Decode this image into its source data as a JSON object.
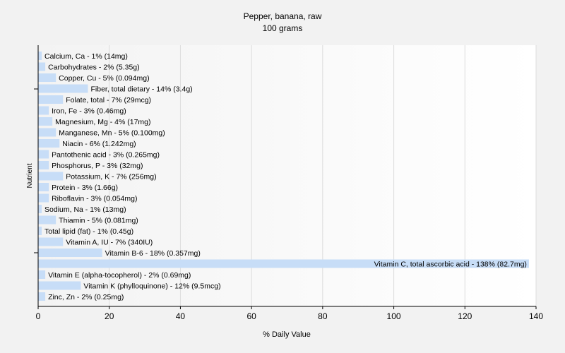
{
  "chart_data": {
    "type": "bar",
    "orientation": "horizontal",
    "title": "Pepper, banana, raw",
    "subtitle": "100 grams",
    "xlabel": "% Daily Value",
    "ylabel": "Nutrient",
    "xlim": [
      0,
      140
    ],
    "xticks": [
      0,
      20,
      40,
      60,
      80,
      100,
      120,
      140
    ],
    "grid": true,
    "colors": {
      "bar": "#c7ddf7",
      "grid": "#dcdcdc",
      "plot_bg": "#ffffff",
      "page_bg": "#f2f2f2",
      "axis": "#000000"
    },
    "bars": [
      {
        "category": "Calcium, Ca",
        "value": 1,
        "label": "Calcium, Ca - 1% (14mg)"
      },
      {
        "category": "Carbohydrates",
        "value": 2,
        "label": "Carbohydrates - 2% (5.35g)"
      },
      {
        "category": "Copper, Cu",
        "value": 5,
        "label": "Copper, Cu - 5% (0.094mg)"
      },
      {
        "category": "Fiber, total dietary",
        "value": 14,
        "label": "Fiber, total dietary - 14% (3.4g)"
      },
      {
        "category": "Folate, total",
        "value": 7,
        "label": "Folate, total - 7% (29mcg)"
      },
      {
        "category": "Iron, Fe",
        "value": 3,
        "label": "Iron, Fe - 3% (0.46mg)"
      },
      {
        "category": "Magnesium, Mg",
        "value": 4,
        "label": "Magnesium, Mg - 4% (17mg)"
      },
      {
        "category": "Manganese, Mn",
        "value": 5,
        "label": "Manganese, Mn - 5% (0.100mg)"
      },
      {
        "category": "Niacin",
        "value": 6,
        "label": "Niacin - 6% (1.242mg)"
      },
      {
        "category": "Pantothenic acid",
        "value": 3,
        "label": "Pantothenic acid - 3% (0.265mg)"
      },
      {
        "category": "Phosphorus, P",
        "value": 3,
        "label": "Phosphorus, P - 3% (32mg)"
      },
      {
        "category": "Potassium, K",
        "value": 7,
        "label": "Potassium, K - 7% (256mg)"
      },
      {
        "category": "Protein",
        "value": 3,
        "label": "Protein - 3% (1.66g)"
      },
      {
        "category": "Riboflavin",
        "value": 3,
        "label": "Riboflavin - 3% (0.054mg)"
      },
      {
        "category": "Sodium, Na",
        "value": 1,
        "label": "Sodium, Na - 1% (13mg)"
      },
      {
        "category": "Thiamin",
        "value": 5,
        "label": "Thiamin - 5% (0.081mg)"
      },
      {
        "category": "Total lipid (fat)",
        "value": 1,
        "label": "Total lipid (fat) - 1% (0.45g)"
      },
      {
        "category": "Vitamin A, IU",
        "value": 7,
        "label": "Vitamin A, IU - 7% (340IU)"
      },
      {
        "category": "Vitamin B-6",
        "value": 18,
        "label": "Vitamin B-6 - 18% (0.357mg)"
      },
      {
        "category": "Vitamin C, total ascorbic acid",
        "value": 138,
        "label": "Vitamin C, total ascorbic acid - 138% (82.7mg)"
      },
      {
        "category": "Vitamin E (alpha-tocopherol)",
        "value": 2,
        "label": "Vitamin E (alpha-tocopherol) - 2% (0.69mg)"
      },
      {
        "category": "Vitamin K (phylloquinone)",
        "value": 12,
        "label": "Vitamin K (phylloquinone) - 12% (9.5mcg)"
      },
      {
        "category": "Zinc, Zn",
        "value": 2,
        "label": "Zinc, Zn - 2% (0.25mg)"
      }
    ]
  }
}
